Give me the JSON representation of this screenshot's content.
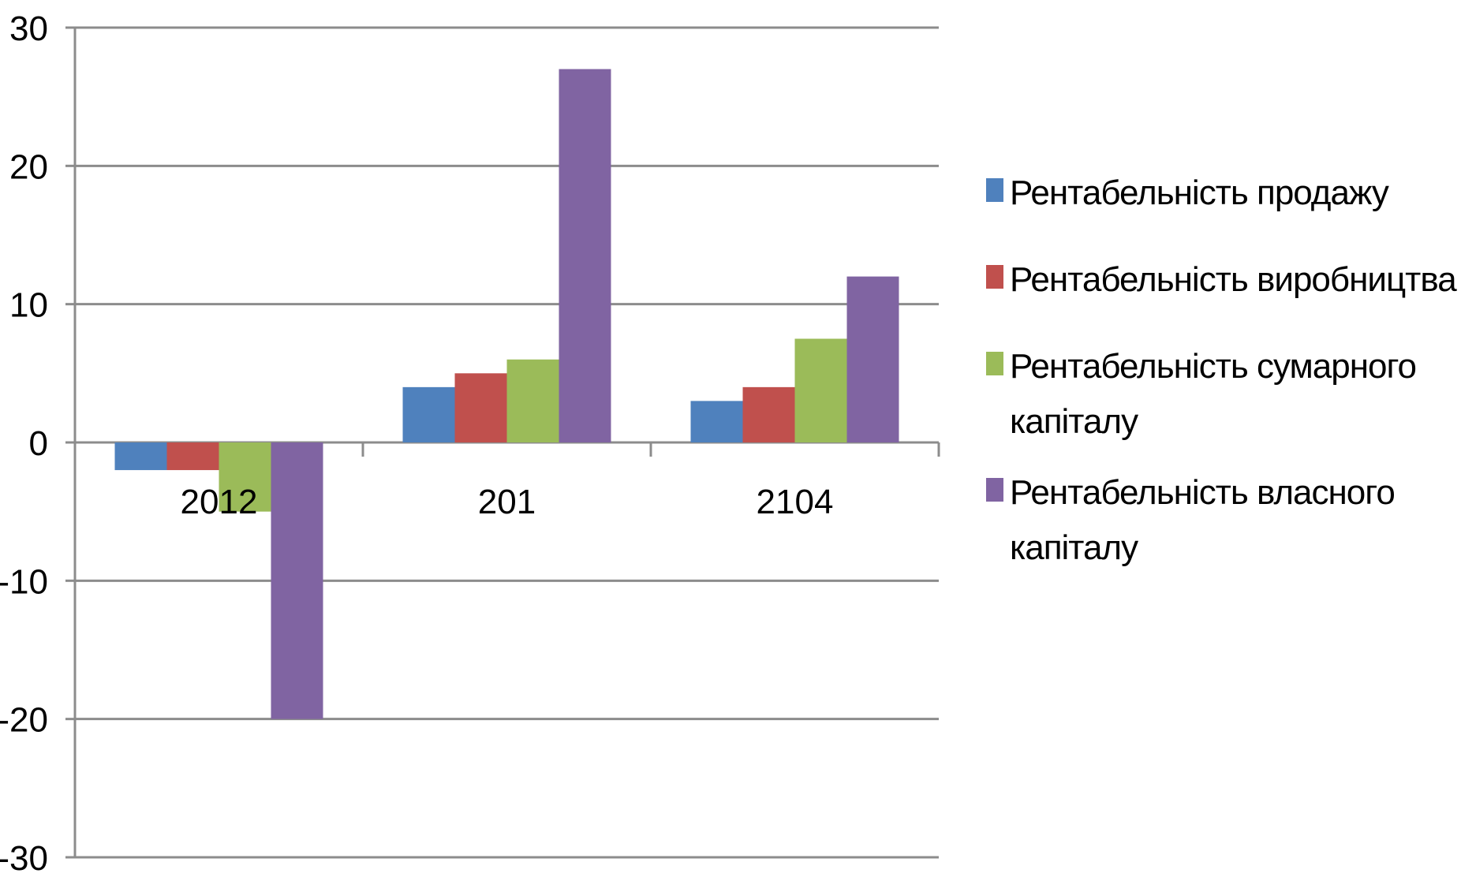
{
  "chart_data": {
    "type": "bar",
    "title": "",
    "xlabel": "",
    "ylabel": "",
    "categories": [
      "2012",
      "201",
      "2104"
    ],
    "series": [
      {
        "name": "Рентабельність продажу",
        "color": "#4F81BD",
        "values": [
          -2,
          4,
          3
        ]
      },
      {
        "name": "Рентабельність виробництва",
        "color": "#C0504D",
        "values": [
          -2,
          5,
          4
        ]
      },
      {
        "name": "Рентабельність сумарного капіталу",
        "color": "#9BBB59",
        "values": [
          -5,
          6,
          7.5
        ]
      },
      {
        "name": "Рентабельність власного капіталу",
        "color": "#8064A2",
        "values": [
          -20,
          27,
          12
        ]
      }
    ],
    "ylim": [
      -30,
      30
    ],
    "yticks": [
      -30,
      -20,
      -10,
      0,
      10,
      20,
      30
    ],
    "grid": true,
    "legend": "right"
  }
}
